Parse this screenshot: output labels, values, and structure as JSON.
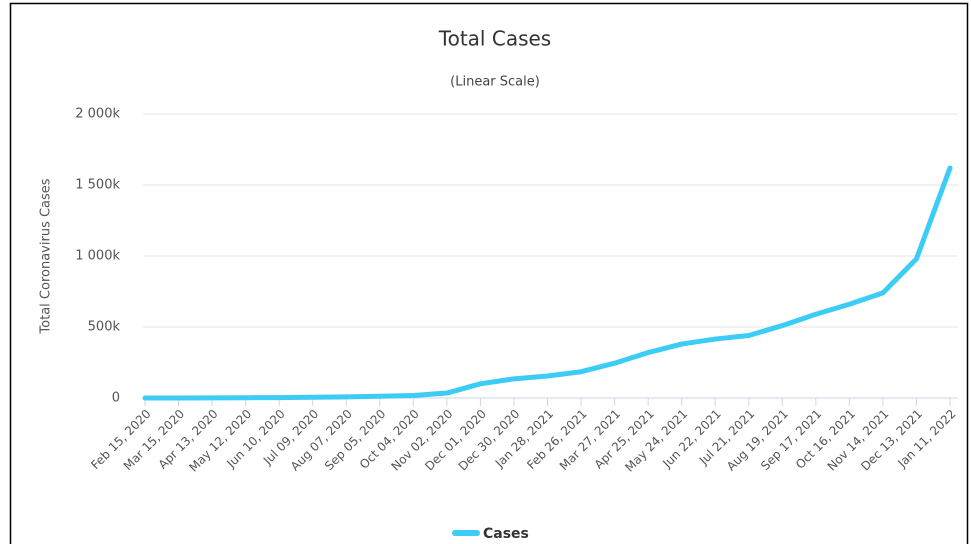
{
  "chart_data": {
    "type": "line",
    "title": "Total Cases",
    "subtitle": "(Linear Scale)",
    "y_label": "Total Coronavirus Cases",
    "categories": [
      "Feb 15, 2020",
      "Mar 15, 2020",
      "Apr 13, 2020",
      "May 12, 2020",
      "Jun 10, 2020",
      "Jul 09, 2020",
      "Aug 07, 2020",
      "Sep 05, 2020",
      "Oct 04, 2020",
      "Nov 02, 2020",
      "Dec 01, 2020",
      "Dec 30, 2020",
      "Jan 28, 2021",
      "Feb 26, 2021",
      "Mar 27, 2021",
      "Apr 25, 2021",
      "May 24, 2021",
      "Jun 22, 2021",
      "Jul 21, 2021",
      "Aug 19, 2021",
      "Sep 17, 2021",
      "Oct 16, 2021",
      "Nov 14, 2021",
      "Dec 13, 2021",
      "Jan 11, 2022"
    ],
    "series": [
      {
        "name": "Cases",
        "color": "#3cccf5",
        "values": [
          0,
          0,
          1000,
          2000,
          3000,
          5000,
          8000,
          12000,
          18000,
          35000,
          100000,
          135000,
          155000,
          185000,
          245000,
          320000,
          380000,
          415000,
          440000,
          510000,
          590000,
          660000,
          740000,
          980000,
          1620000
        ]
      }
    ],
    "ylim": [
      0,
      2000000
    ],
    "yticks": [
      0,
      {
        "value": 500000,
        "label": "500k"
      },
      {
        "value": 1000000,
        "label": "1 000k"
      },
      {
        "value": 1500000,
        "label": "1 500k"
      },
      {
        "value": 2000000,
        "label": "2 000k"
      }
    ],
    "grid": true
  }
}
